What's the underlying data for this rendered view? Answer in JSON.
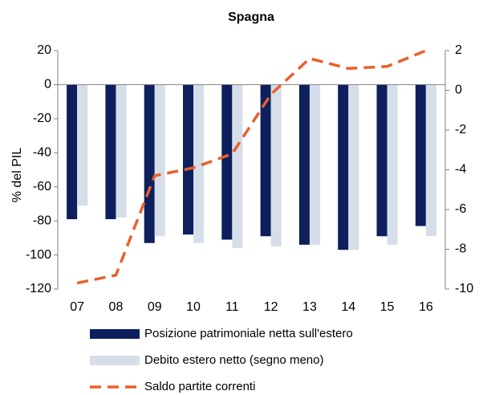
{
  "chart_data": {
    "type": "bar_line",
    "title": "Spagna",
    "y_label": "% del PIL",
    "categories": [
      "07",
      "08",
      "09",
      "10",
      "11",
      "12",
      "13",
      "14",
      "15",
      "16"
    ],
    "series": [
      {
        "name": "Posizione patrimoniale netta sull'estero",
        "type": "bar",
        "color": "#0d1f5c",
        "values": [
          -79,
          -79,
          -93,
          -88,
          -91,
          -89,
          -94,
          -97,
          -89,
          -83
        ]
      },
      {
        "name": "Debito estero netto (segno meno)",
        "type": "bar",
        "color": "#d6deea",
        "values": [
          -71,
          -78,
          -89,
          -93,
          -96,
          -95,
          -94,
          -97,
          -94,
          -89
        ]
      },
      {
        "name": "Saldo partite correnti",
        "type": "line",
        "axis": "y2",
        "color": "#e8602c",
        "values": [
          -9.7,
          -9.3,
          -4.3,
          -3.9,
          -3.2,
          -0.2,
          1.6,
          1.1,
          1.2,
          2.0
        ]
      }
    ],
    "ylim": [
      -120,
      20
    ],
    "yticks": [
      -120,
      -100,
      -80,
      -60,
      -40,
      -20,
      0,
      20
    ],
    "y2lim": [
      -10,
      2
    ],
    "y2ticks": [
      -10,
      -8,
      -6,
      -4,
      -2,
      0,
      2
    ],
    "legend": "bottom"
  }
}
